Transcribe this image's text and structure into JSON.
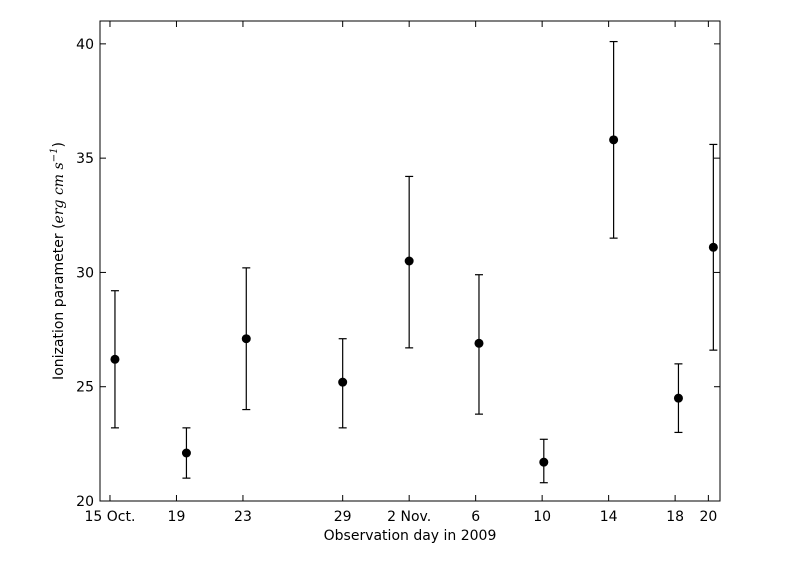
{
  "chart_data": {
    "type": "scatter",
    "title": "",
    "xlabel": "Observation day in 2009",
    "ylabel": {
      "text": "Ionization parameter",
      "unit_open": "(",
      "unit_erg": "erg",
      "unit_cm": "cm",
      "unit_s": "s",
      "unit_exp": "−1",
      "unit_close": ")"
    },
    "x_unit": "day offset from 15 Oct. 2009",
    "xlim": [
      -0.6,
      36.7
    ],
    "ylim": [
      20,
      41
    ],
    "x_ticks": [
      {
        "x": 0,
        "label": "15 Oct."
      },
      {
        "x": 4,
        "label": "19"
      },
      {
        "x": 8,
        "label": "23"
      },
      {
        "x": 14,
        "label": "29"
      },
      {
        "x": 18,
        "label": "2 Nov."
      },
      {
        "x": 22,
        "label": "6"
      },
      {
        "x": 26,
        "label": "10"
      },
      {
        "x": 30,
        "label": "14"
      },
      {
        "x": 34,
        "label": "18"
      },
      {
        "x": 36,
        "label": "20"
      }
    ],
    "y_ticks": [
      20,
      25,
      30,
      35,
      40
    ],
    "points": [
      {
        "x": 0.3,
        "y": 26.2,
        "err_low": 23.2,
        "err_high": 29.2
      },
      {
        "x": 4.6,
        "y": 22.1,
        "err_low": 21.0,
        "err_high": 23.2
      },
      {
        "x": 8.2,
        "y": 27.1,
        "err_low": 24.0,
        "err_high": 30.2
      },
      {
        "x": 14.0,
        "y": 25.2,
        "err_low": 23.2,
        "err_high": 27.1
      },
      {
        "x": 18.0,
        "y": 30.5,
        "err_low": 26.7,
        "err_high": 34.2
      },
      {
        "x": 22.2,
        "y": 26.9,
        "err_low": 23.8,
        "err_high": 29.9
      },
      {
        "x": 26.1,
        "y": 21.7,
        "err_low": 20.8,
        "err_high": 22.7
      },
      {
        "x": 30.3,
        "y": 35.8,
        "err_low": 31.5,
        "err_high": 40.1
      },
      {
        "x": 34.2,
        "y": 24.5,
        "err_low": 23.0,
        "err_high": 26.0
      },
      {
        "x": 36.3,
        "y": 31.1,
        "err_low": 26.6,
        "err_high": 35.6
      }
    ],
    "grid": false,
    "legend": "none",
    "colors": {
      "marker": "#000000",
      "axes": "#000000",
      "background": "#ffffff"
    }
  }
}
